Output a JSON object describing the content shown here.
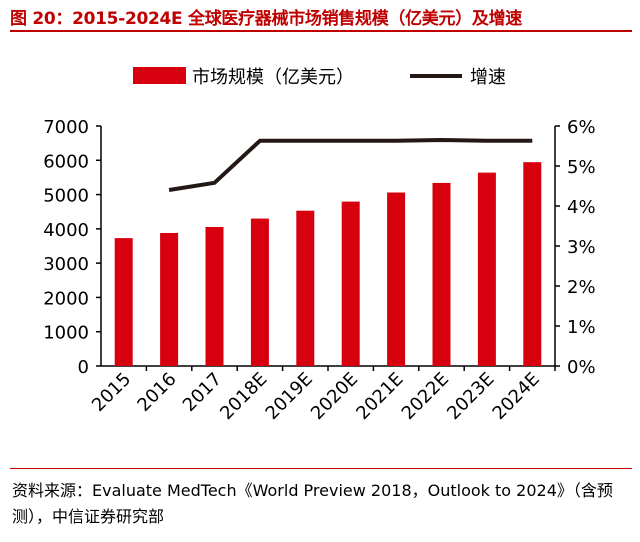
{
  "title": "图 20：2015-2024E 全球医疗器械市场销售规模（亿美元）及增速",
  "source": "资料来源：Evaluate MedTech《World Preview 2018，Outlook to 2024》（含预测），中信证券研究部",
  "chart_data": {
    "type": "bar+line",
    "categories": [
      "2015",
      "2016",
      "2017",
      "2018E",
      "2019E",
      "2020E",
      "2021E",
      "2022E",
      "2023E",
      "2024E"
    ],
    "series": [
      {
        "name": "市场规模（亿美元）",
        "type": "bar",
        "axis": "left",
        "color": "#d7000f",
        "values": [
          3730,
          3880,
          4055,
          4300,
          4530,
          4795,
          5060,
          5340,
          5640,
          5945
        ]
      },
      {
        "name": "增速",
        "type": "line",
        "axis": "right",
        "color": "#231815",
        "values": [
          null,
          4.4,
          4.58,
          5.63,
          5.63,
          5.63,
          5.63,
          5.65,
          5.63,
          5.63
        ]
      }
    ],
    "left_ylim": [
      0,
      7000
    ],
    "left_ticks": [
      "0",
      "1000",
      "2000",
      "3000",
      "4000",
      "5000",
      "6000",
      "7000"
    ],
    "right_ylim": [
      0,
      6
    ],
    "right_ticks": [
      "0%",
      "1%",
      "2%",
      "3%",
      "4%",
      "5%",
      "6%"
    ],
    "legend": "top",
    "grid": false
  }
}
